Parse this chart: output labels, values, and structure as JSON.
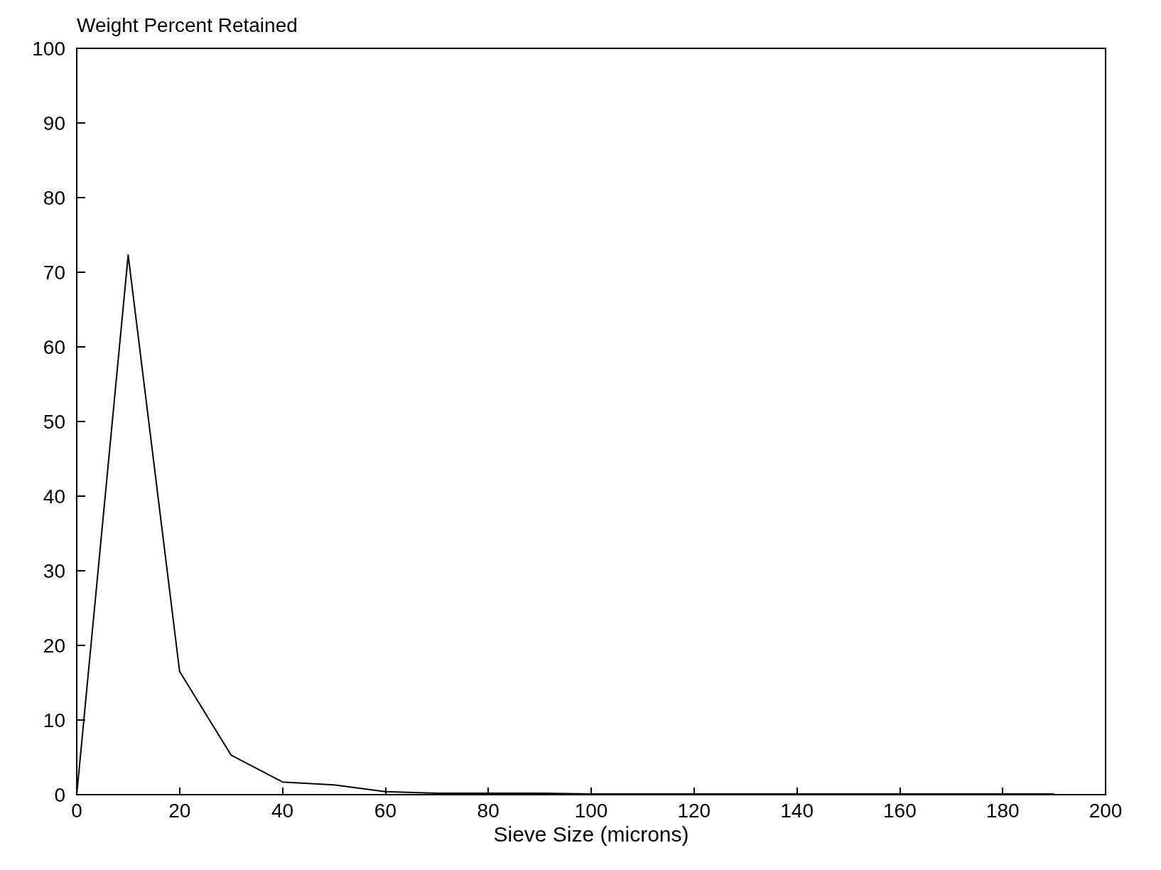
{
  "chart_data": {
    "type": "line",
    "ylabel": "Weight Percent Retained",
    "xlabel": "Sieve Size (microns)",
    "x": [
      0,
      10,
      20,
      30,
      40,
      50,
      60,
      70,
      80,
      90,
      100,
      110,
      120,
      130,
      140,
      150,
      160,
      170,
      180,
      190
    ],
    "series": [
      {
        "color": "#000000",
        "values": [
          0,
          72.3,
          16.5,
          5.3,
          1.7,
          1.3,
          0.4,
          0.2,
          0.2,
          0.2,
          0.1,
          0.1,
          0.1,
          0.1,
          0.1,
          0.1,
          0.1,
          0.1,
          0.1,
          0.1
        ]
      }
    ],
    "xlim": [
      0,
      200
    ],
    "xticks": [
      0,
      20,
      40,
      60,
      80,
      100,
      120,
      140,
      160,
      180,
      200
    ],
    "ylim": [
      0,
      100
    ],
    "yticks": [
      0,
      10,
      20,
      30,
      40,
      50,
      60,
      70,
      80,
      90,
      100
    ],
    "grid": false,
    "marker": "none",
    "line_style": "solid"
  }
}
